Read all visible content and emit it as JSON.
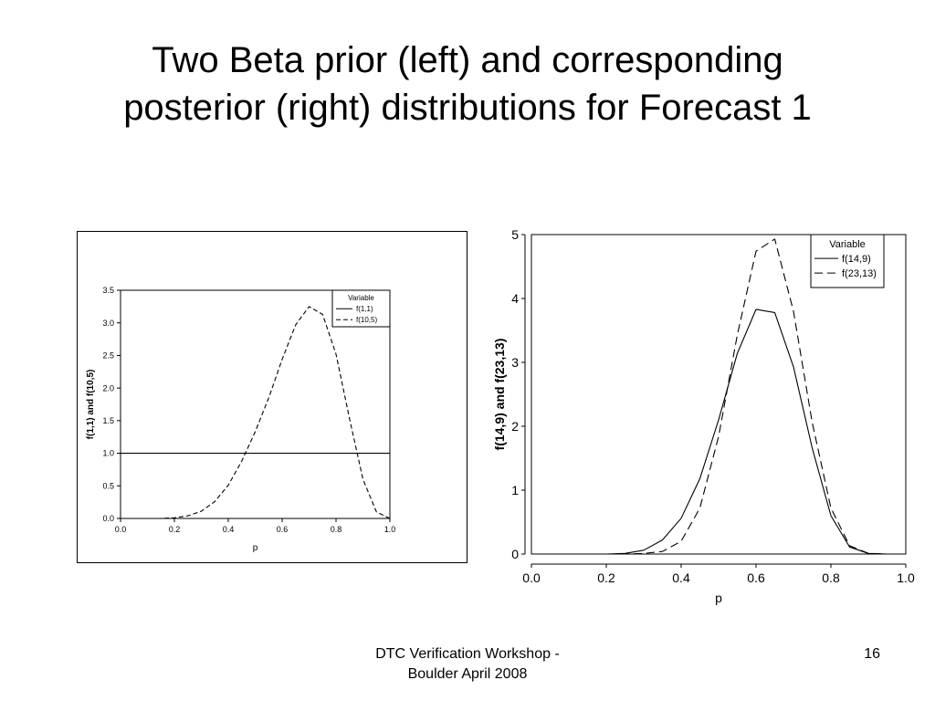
{
  "slide": {
    "title_line1": "Two Beta prior (left) and corresponding",
    "title_line2": "posterior (right) distributions for Forecast 1",
    "footer_line1": "DTC Verification Workshop -",
    "footer_line2": "Boulder April 2008",
    "page_number": "16"
  },
  "chart_data": [
    {
      "type": "line",
      "xlabel": "p",
      "ylabel": "f(1,1) and f(10,5)",
      "xlim": [
        0.0,
        1.0
      ],
      "ylim": [
        0.0,
        3.5
      ],
      "xticks": [
        "0.0",
        "0.2",
        "0.4",
        "0.6",
        "0.8",
        "1.0"
      ],
      "yticks": [
        "0.0",
        "0.5",
        "1.0",
        "1.5",
        "2.0",
        "2.5",
        "3.0",
        "3.5"
      ],
      "legend": {
        "title": "Variable",
        "position": "top-right"
      },
      "x": [
        0.0,
        0.05,
        0.1,
        0.15,
        0.2,
        0.25,
        0.3,
        0.35,
        0.4,
        0.45,
        0.5,
        0.55,
        0.6,
        0.65,
        0.7,
        0.75,
        0.8,
        0.85,
        0.9,
        0.95,
        1.0
      ],
      "series": [
        {
          "name": "f(1,1)",
          "style": "solid",
          "values": [
            1.0,
            1.0,
            1.0,
            1.0,
            1.0,
            1.0,
            1.0,
            1.0,
            1.0,
            1.0,
            1.0,
            1.0,
            1.0,
            1.0,
            1.0,
            1.0,
            1.0,
            1.0,
            1.0,
            1.0,
            1.0
          ]
        },
        {
          "name": "f(10,5)",
          "style": "dashed",
          "values": [
            0.0,
            0.0,
            0.0,
            0.0,
            0.01,
            0.04,
            0.11,
            0.26,
            0.51,
            0.88,
            1.33,
            1.85,
            2.44,
            2.97,
            3.25,
            3.13,
            2.52,
            1.53,
            0.6,
            0.1,
            0.0
          ]
        }
      ]
    },
    {
      "type": "line",
      "xlabel": "p",
      "ylabel": "f(14,9) and f(23,13)",
      "xlim": [
        0.0,
        1.0
      ],
      "ylim": [
        0,
        5
      ],
      "xticks": [
        "0.0",
        "0.2",
        "0.4",
        "0.6",
        "0.8",
        "1.0"
      ],
      "yticks": [
        "0",
        "1",
        "2",
        "3",
        "4",
        "5"
      ],
      "legend": {
        "title": "Variable",
        "position": "top-right"
      },
      "x": [
        0.0,
        0.05,
        0.1,
        0.15,
        0.2,
        0.25,
        0.3,
        0.35,
        0.4,
        0.45,
        0.5,
        0.55,
        0.6,
        0.65,
        0.7,
        0.75,
        0.8,
        0.85,
        0.9,
        0.95,
        1.0
      ],
      "series": [
        {
          "name": "f(14,9)",
          "style": "solid",
          "values": [
            0.0,
            0.0,
            0.0,
            0.0,
            0.0,
            0.01,
            0.06,
            0.22,
            0.56,
            1.18,
            2.1,
            3.14,
            3.83,
            3.78,
            2.93,
            1.66,
            0.6,
            0.11,
            0.01,
            0.0,
            0.0
          ]
        },
        {
          "name": "f(23,13)",
          "style": "dashed",
          "values": [
            0.0,
            0.0,
            0.0,
            0.0,
            0.0,
            0.0,
            0.01,
            0.04,
            0.2,
            0.72,
            1.84,
            3.43,
            4.74,
            4.93,
            3.8,
            2.06,
            0.72,
            0.13,
            0.01,
            0.0,
            0.0
          ]
        }
      ]
    }
  ]
}
